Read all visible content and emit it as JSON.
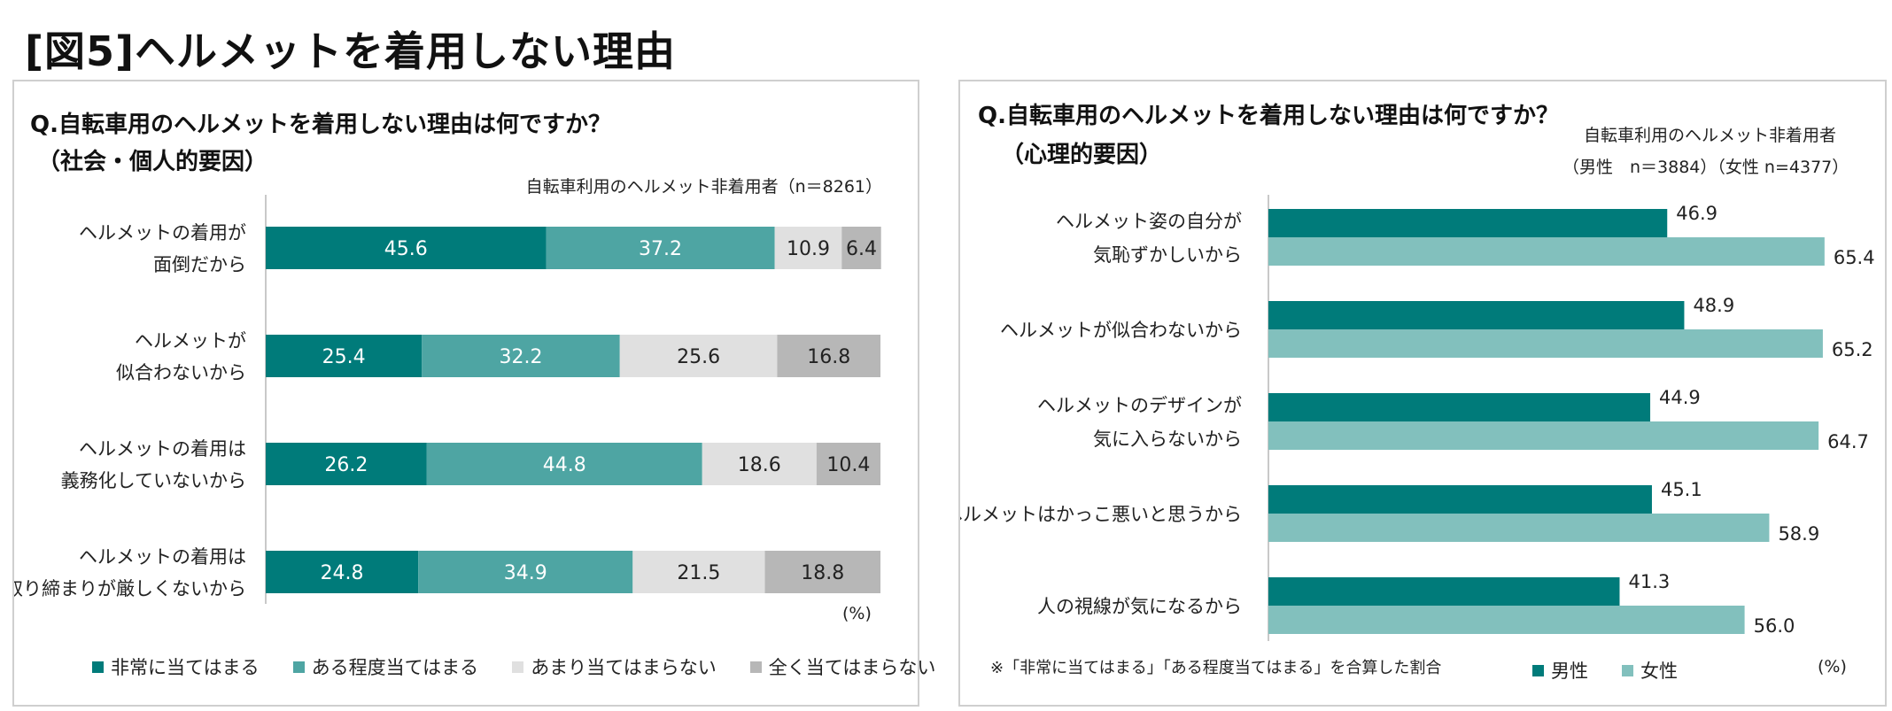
{
  "figure_title": "[図5]ヘルメットを着用しない理由",
  "colors": {
    "very": "#007b7a",
    "somewhat": "#4ea5a3",
    "notmuch": "#e0e0e0",
    "notatall": "#b7b7b7",
    "male": "#007b7a",
    "female": "#82c0bd"
  },
  "left": {
    "question": "Q.自転車用のヘルメットを着用しない理由は何ですか？",
    "subtitle": "（社会・個人的要因）",
    "sample_note": "自転車利用のヘルメット非着用者（n＝8261）",
    "unit": "(%)"
  },
  "right": {
    "question": "Q.自転車用のヘルメットを着用しない理由は何ですか？",
    "subtitle": "（心理的要因）",
    "sample_note_1": "自転車利用のヘルメット非着用者",
    "sample_note_2": "（男性　n＝3884）（女性 n=4377）",
    "footnote": "※「非常に当てはまる」「ある程度当てはまる」を合算した割合",
    "unit": "(%)"
  },
  "chart_data": [
    {
      "type": "bar",
      "orientation": "horizontal",
      "stacked": true,
      "categories": [
        [
          "ヘルメットの着用が",
          "面倒だから"
        ],
        [
          "ヘルメットが",
          "似合わないから"
        ],
        [
          "ヘルメットの着用は",
          "義務化していないから"
        ],
        [
          "ヘルメットの着用は",
          "取り締まりが厳しくないから"
        ]
      ],
      "series": [
        {
          "name": "非常に当てはまる",
          "values": [
            45.6,
            25.4,
            26.2,
            24.8
          ]
        },
        {
          "name": "ある程度当てはまる",
          "values": [
            37.2,
            32.2,
            44.8,
            34.9
          ]
        },
        {
          "name": "あまり当てはまらない",
          "values": [
            10.9,
            25.6,
            18.6,
            21.5
          ]
        },
        {
          "name": "全く当てはまらない",
          "values": [
            6.4,
            16.8,
            10.4,
            18.8
          ]
        }
      ],
      "xlim": [
        0,
        100
      ],
      "unit": "%"
    },
    {
      "type": "bar",
      "orientation": "horizontal",
      "stacked": false,
      "categories": [
        [
          "ヘルメット姿の自分が",
          "気恥ずかしいから"
        ],
        [
          "ヘルメットが似合わないから"
        ],
        [
          "ヘルメットのデザインが",
          "気に入らないから"
        ],
        [
          "ヘルメットはかっこ悪いと思うから"
        ],
        [
          "人の視線が気になるから"
        ]
      ],
      "series": [
        {
          "name": "男性",
          "values": [
            46.9,
            48.9,
            44.9,
            45.1,
            41.3
          ]
        },
        {
          "name": "女性",
          "values": [
            65.4,
            65.2,
            64.7,
            58.9,
            56.0
          ]
        }
      ],
      "xlim": [
        0,
        70
      ],
      "unit": "%"
    }
  ]
}
